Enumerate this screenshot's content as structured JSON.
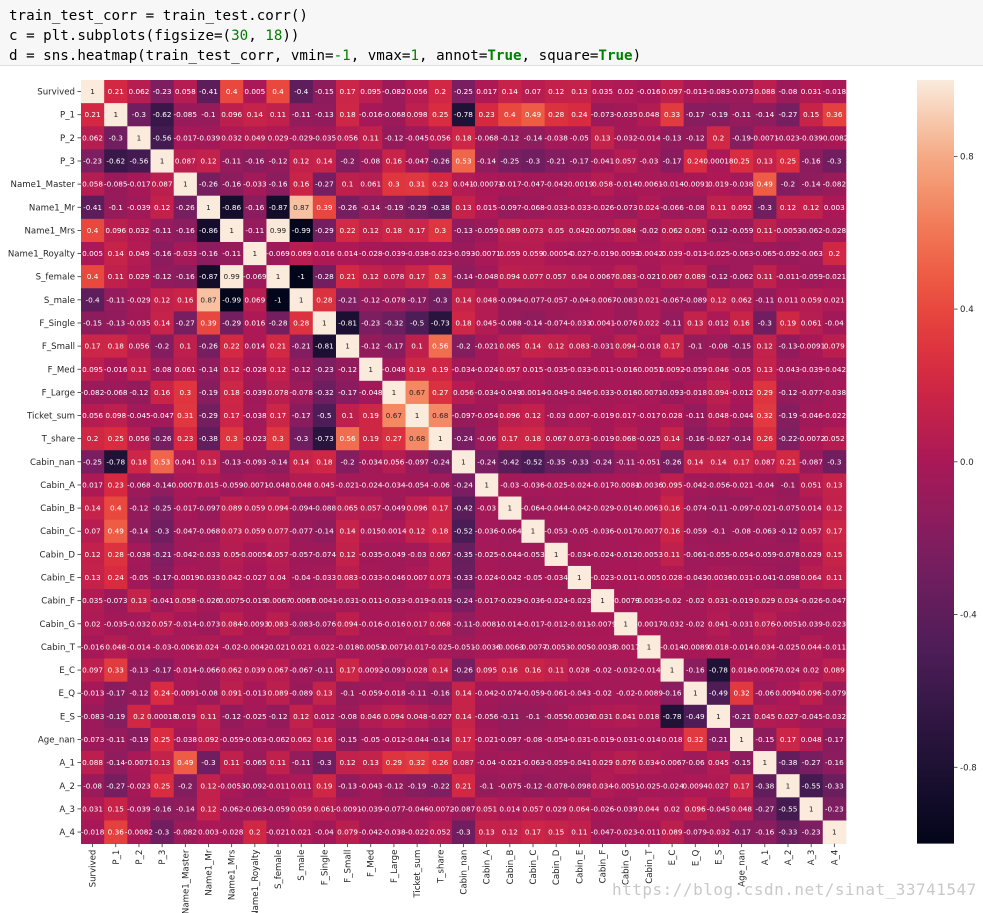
{
  "code": {
    "line1": "train_test_corr = train_test.corr()",
    "line2_pre": "c = plt.subplots(figsize=(",
    "line2_n1": "30",
    "line2_mid": ", ",
    "line2_n2": "18",
    "line2_post": "))",
    "line3_pre": "d = sns.heatmap(train_test_corr, vmin=",
    "line3_n1": "-1",
    "line3_mid1": ", vmax=",
    "line3_n2": "1",
    "line3_mid2": ", annot=",
    "line3_kw1": "True",
    "line3_mid3": ", square=",
    "line3_kw2": "True",
    "line3_post": ")"
  },
  "watermark": "https://blog.csdn.net/sinat_33741547",
  "chart_data": {
    "type": "heatmap",
    "vmin": -1,
    "vmax": 1,
    "colorbar_ticks": [
      "0.8",
      "0.4",
      "0.0",
      "-0.4",
      "-0.8"
    ],
    "colorbar_tick_values": [
      0.8,
      0.4,
      0.0,
      -0.4,
      -0.8
    ],
    "labels": [
      "Survived",
      "P_1",
      "P_2",
      "P_3",
      "Name1_Master",
      "Name1_Mr",
      "Name1_Mrs",
      "Name1_Royalty",
      "S_female",
      "S_male",
      "F_Single",
      "F_Small",
      "F_Med",
      "F_Large",
      "Ticket_sum",
      "T_share",
      "Cabin_nan",
      "Cabin_A",
      "Cabin_B",
      "Cabin_C",
      "Cabin_D",
      "Cabin_E",
      "Cabin_F",
      "Cabin_G",
      "Cabin_T",
      "E_C",
      "E_Q",
      "E_S",
      "Age_nan",
      "A_1",
      "A_2",
      "A_3",
      "A_4"
    ],
    "matrix": [
      [
        1,
        0.21,
        0.062,
        -0.23,
        0.058,
        -0.41,
        0.4,
        0.005,
        0.4,
        -0.4,
        -0.15,
        0.17,
        0.095,
        -0.082,
        0.056,
        0.2,
        -0.25,
        0.017,
        0.14,
        0.07,
        0.12,
        0.13,
        0.035,
        0.02,
        -0.016,
        0.097,
        -0.013,
        -0.083,
        -0.073,
        0.088,
        -0.08,
        0.031,
        -0.018
      ],
      [
        0.21,
        1,
        -0.3,
        -0.62,
        -0.085,
        -0.1,
        0.096,
        0.14,
        0.11,
        -0.11,
        -0.13,
        0.18,
        -0.016,
        -0.068,
        0.098,
        0.25,
        -0.78,
        0.23,
        0.4,
        0.49,
        0.28,
        0.24,
        -0.073,
        -0.035,
        0.048,
        0.33,
        -0.17,
        -0.19,
        -0.11,
        -0.14,
        -0.27,
        0.15,
        0.36
      ],
      [
        0.062,
        -0.3,
        1,
        -0.56,
        -0.017,
        -0.039,
        0.032,
        0.049,
        0.029,
        -0.029,
        -0.035,
        0.056,
        0.11,
        -0.12,
        -0.045,
        0.056,
        0.18,
        -0.068,
        -0.12,
        -0.14,
        -0.038,
        -0.05,
        0.13,
        -0.032,
        -0.014,
        -0.13,
        -0.12,
        0.2,
        -0.19,
        -0.0071,
        -0.023,
        -0.039,
        -0.0082
      ],
      [
        -0.23,
        -0.62,
        -0.56,
        1,
        0.087,
        0.12,
        -0.11,
        -0.16,
        -0.12,
        0.12,
        0.14,
        -0.2,
        -0.08,
        0.16,
        -0.047,
        -0.26,
        0.53,
        -0.14,
        -0.25,
        -0.3,
        -0.21,
        -0.17,
        -0.041,
        0.057,
        -0.03,
        -0.17,
        0.24,
        0.00018,
        0.25,
        0.13,
        0.25,
        -0.16,
        -0.3
      ],
      [
        0.058,
        -0.085,
        -0.017,
        0.087,
        1,
        -0.26,
        -0.16,
        -0.033,
        -0.16,
        0.16,
        -0.27,
        0.1,
        0.061,
        0.3,
        0.31,
        0.23,
        0.041,
        -0.00071,
        -0.017,
        -0.047,
        -0.042,
        -0.0019,
        0.058,
        -0.014,
        -0.0061,
        -0.014,
        -0.0091,
        0.019,
        -0.038,
        0.49,
        -0.2,
        -0.14,
        -0.082
      ],
      [
        -0.41,
        -0.1,
        -0.039,
        0.12,
        -0.26,
        1,
        -0.86,
        -0.16,
        -0.87,
        0.87,
        0.39,
        -0.26,
        -0.14,
        -0.19,
        -0.29,
        -0.38,
        0.13,
        0.015,
        -0.097,
        -0.068,
        -0.033,
        -0.033,
        -0.026,
        -0.073,
        0.024,
        -0.066,
        -0.08,
        0.11,
        0.092,
        -0.3,
        0.12,
        0.12,
        0.003
      ],
      [
        0.4,
        0.096,
        0.032,
        -0.11,
        -0.16,
        -0.86,
        1,
        -0.11,
        0.99,
        -0.99,
        -0.29,
        0.22,
        0.12,
        0.18,
        0.17,
        0.3,
        -0.13,
        -0.059,
        0.089,
        0.073,
        0.05,
        0.042,
        0.0075,
        0.084,
        -0.02,
        0.062,
        0.091,
        -0.12,
        -0.059,
        0.11,
        -0.0053,
        -0.062,
        -0.028
      ],
      [
        0.005,
        0.14,
        0.049,
        -0.16,
        -0.033,
        -0.16,
        -0.11,
        1,
        -0.069,
        0.069,
        0.016,
        0.014,
        -0.028,
        -0.039,
        -0.038,
        -0.023,
        -0.093,
        -0.0071,
        0.059,
        0.059,
        -0.00054,
        -0.027,
        -0.019,
        -0.0093,
        -0.0042,
        0.039,
        -0.013,
        -0.025,
        -0.063,
        -0.065,
        -0.092,
        -0.063,
        0.2
      ],
      [
        0.4,
        0.11,
        0.029,
        -0.12,
        -0.16,
        -0.87,
        0.99,
        -0.069,
        1,
        -1,
        -0.28,
        0.21,
        0.12,
        0.078,
        0.17,
        0.3,
        -0.14,
        -0.048,
        0.094,
        0.077,
        0.057,
        0.04,
        0.0067,
        0.083,
        -0.021,
        0.067,
        0.089,
        -0.12,
        -0.062,
        0.11,
        -0.011,
        -0.059,
        -0.021
      ],
      [
        -0.4,
        -0.11,
        -0.029,
        0.12,
        0.16,
        0.87,
        -0.99,
        0.069,
        -1,
        1,
        0.28,
        -0.21,
        -0.12,
        -0.078,
        -0.17,
        -0.3,
        0.14,
        0.048,
        -0.094,
        -0.077,
        -0.057,
        -0.04,
        -0.0067,
        -0.083,
        0.021,
        -0.067,
        -0.089,
        0.12,
        0.062,
        -0.11,
        0.011,
        0.059,
        0.021
      ],
      [
        -0.15,
        -0.13,
        -0.035,
        0.14,
        -0.27,
        0.39,
        -0.29,
        0.016,
        -0.28,
        0.28,
        1,
        -0.81,
        -0.23,
        -0.32,
        -0.5,
        -0.73,
        0.18,
        0.045,
        -0.088,
        -0.14,
        -0.074,
        -0.033,
        0.0041,
        -0.076,
        0.022,
        -0.11,
        0.13,
        0.012,
        0.16,
        -0.3,
        0.19,
        0.061,
        -0.04
      ],
      [
        0.17,
        0.18,
        0.056,
        -0.2,
        0.1,
        -0.26,
        0.22,
        0.014,
        0.21,
        -0.21,
        -0.81,
        1,
        -0.12,
        -0.17,
        0.1,
        0.56,
        -0.2,
        -0.021,
        0.065,
        0.14,
        0.12,
        0.083,
        -0.031,
        0.094,
        -0.018,
        0.17,
        -0.1,
        -0.08,
        -0.15,
        0.12,
        -0.13,
        -0.0091,
        0.079
      ],
      [
        0.095,
        -0.016,
        0.11,
        -0.08,
        0.061,
        -0.14,
        0.12,
        -0.028,
        0.12,
        -0.12,
        -0.23,
        -0.12,
        1,
        -0.048,
        0.19,
        0.19,
        -0.034,
        -0.024,
        0.057,
        0.015,
        -0.035,
        -0.033,
        -0.011,
        -0.016,
        -0.0051,
        0.0092,
        -0.059,
        0.046,
        -0.05,
        0.13,
        -0.043,
        -0.039,
        -0.042
      ],
      [
        -0.082,
        -0.068,
        -0.12,
        0.16,
        0.3,
        -0.19,
        0.18,
        -0.039,
        0.078,
        -0.078,
        -0.32,
        -0.17,
        -0.048,
        1,
        0.67,
        0.27,
        0.056,
        -0.034,
        -0.049,
        0.0014,
        -0.049,
        -0.046,
        -0.033,
        -0.016,
        -0.0071,
        -0.093,
        -0.018,
        0.094,
        -0.012,
        0.29,
        -0.12,
        -0.077,
        -0.038
      ],
      [
        0.056,
        0.098,
        -0.045,
        -0.047,
        0.31,
        -0.29,
        0.17,
        -0.038,
        0.17,
        -0.17,
        -0.5,
        0.1,
        0.19,
        0.67,
        1,
        0.68,
        -0.097,
        -0.054,
        0.096,
        0.12,
        -0.03,
        0.007,
        -0.019,
        0.017,
        -0.017,
        0.028,
        -0.11,
        0.048,
        -0.044,
        0.32,
        -0.19,
        -0.046,
        -0.022
      ],
      [
        0.2,
        0.25,
        0.056,
        -0.26,
        0.23,
        -0.38,
        0.3,
        -0.023,
        0.3,
        -0.3,
        -0.73,
        0.56,
        0.19,
        0.27,
        0.68,
        1,
        -0.24,
        -0.06,
        0.17,
        0.18,
        0.067,
        0.073,
        -0.019,
        0.068,
        -0.025,
        0.14,
        -0.16,
        -0.027,
        -0.14,
        0.26,
        -0.22,
        -0.0072,
        0.052
      ],
      [
        -0.25,
        -0.78,
        0.18,
        0.53,
        0.041,
        0.13,
        -0.13,
        -0.093,
        -0.14,
        0.14,
        0.18,
        -0.2,
        -0.034,
        0.056,
        -0.097,
        -0.24,
        1,
        -0.24,
        -0.42,
        -0.52,
        -0.35,
        -0.33,
        -0.24,
        -0.11,
        -0.051,
        -0.26,
        0.14,
        0.14,
        0.17,
        0.087,
        0.21,
        -0.087,
        -0.3
      ],
      [
        0.017,
        0.23,
        -0.068,
        -0.14,
        -0.00071,
        0.015,
        -0.059,
        -0.0071,
        -0.048,
        0.048,
        0.045,
        -0.021,
        -0.024,
        -0.034,
        -0.054,
        -0.06,
        -0.24,
        1,
        -0.03,
        -0.036,
        -0.025,
        -0.024,
        -0.017,
        -0.0081,
        -0.0036,
        0.095,
        -0.042,
        -0.056,
        -0.021,
        -0.04,
        -0.1,
        0.051,
        0.13
      ],
      [
        0.14,
        0.4,
        -0.12,
        -0.25,
        -0.017,
        -0.097,
        0.089,
        0.059,
        0.094,
        -0.094,
        -0.088,
        0.065,
        0.057,
        -0.049,
        0.096,
        0.17,
        -0.42,
        -0.03,
        1,
        -0.064,
        -0.044,
        -0.042,
        -0.029,
        -0.014,
        -0.0063,
        0.16,
        -0.074,
        -0.11,
        -0.097,
        -0.021,
        -0.075,
        0.014,
        0.12
      ],
      [
        0.07,
        0.49,
        -0.14,
        -0.3,
        -0.047,
        -0.068,
        0.073,
        0.059,
        0.077,
        -0.077,
        -0.14,
        0.14,
        0.015,
        0.0014,
        0.12,
        0.18,
        -0.52,
        -0.036,
        -0.064,
        1,
        -0.053,
        -0.05,
        -0.036,
        -0.017,
        -0.0077,
        0.16,
        -0.059,
        -0.1,
        -0.08,
        -0.063,
        -0.12,
        0.057,
        0.17
      ],
      [
        0.12,
        0.28,
        -0.038,
        -0.21,
        -0.042,
        -0.033,
        0.05,
        -0.00054,
        0.057,
        -0.057,
        -0.074,
        0.12,
        -0.035,
        -0.049,
        -0.03,
        0.067,
        -0.35,
        -0.025,
        -0.044,
        -0.053,
        1,
        -0.034,
        -0.024,
        -0.012,
        -0.0053,
        0.11,
        -0.061,
        -0.055,
        -0.054,
        -0.059,
        -0.078,
        0.029,
        0.15
      ],
      [
        0.13,
        0.24,
        -0.05,
        -0.17,
        -0.0019,
        -0.033,
        0.042,
        -0.027,
        0.04,
        -0.04,
        -0.033,
        0.083,
        -0.033,
        -0.046,
        0.007,
        0.073,
        -0.33,
        -0.024,
        -0.042,
        -0.05,
        -0.034,
        1,
        -0.023,
        -0.011,
        -0.005,
        0.028,
        -0.043,
        -0.0036,
        -0.031,
        -0.041,
        -0.098,
        0.064,
        0.11
      ],
      [
        0.035,
        -0.073,
        0.13,
        -0.041,
        0.058,
        -0.026,
        0.0075,
        -0.019,
        0.0067,
        -0.0067,
        0.0041,
        -0.031,
        -0.011,
        -0.033,
        -0.019,
        -0.019,
        -0.24,
        -0.017,
        -0.029,
        -0.036,
        -0.024,
        -0.023,
        1,
        -0.0079,
        -0.0035,
        -0.02,
        -0.02,
        0.031,
        -0.019,
        0.029,
        0.034,
        -0.026,
        -0.047
      ],
      [
        0.02,
        -0.035,
        -0.032,
        0.057,
        -0.014,
        -0.073,
        0.084,
        -0.0093,
        0.083,
        -0.083,
        -0.076,
        0.094,
        -0.016,
        -0.016,
        0.017,
        0.068,
        -0.11,
        -0.0081,
        -0.014,
        -0.017,
        -0.012,
        -0.011,
        -0.0079,
        1,
        -0.0017,
        -0.032,
        -0.02,
        0.041,
        -0.031,
        0.076,
        -0.0051,
        -0.039,
        -0.023
      ],
      [
        -0.016,
        0.048,
        -0.014,
        -0.03,
        -0.0061,
        0.024,
        -0.02,
        -0.0042,
        -0.021,
        0.021,
        0.022,
        -0.018,
        -0.0051,
        -0.0071,
        -0.017,
        -0.025,
        -0.051,
        -0.0036,
        -0.0063,
        -0.0077,
        -0.0053,
        -0.005,
        -0.0035,
        -0.0017,
        1,
        -0.014,
        -0.0089,
        0.018,
        -0.014,
        0.034,
        -0.025,
        0.044,
        -0.011
      ],
      [
        0.097,
        0.33,
        -0.13,
        -0.17,
        -0.014,
        -0.066,
        0.062,
        0.039,
        0.067,
        -0.067,
        -0.11,
        0.17,
        0.0092,
        -0.093,
        0.028,
        0.14,
        -0.26,
        0.095,
        0.16,
        0.16,
        0.11,
        0.028,
        -0.02,
        -0.032,
        -0.014,
        1,
        -0.16,
        -0.78,
        0.018,
        -0.0067,
        -0.024,
        0.02,
        0.089
      ],
      [
        -0.013,
        -0.17,
        -0.12,
        0.24,
        -0.0091,
        -0.08,
        0.091,
        -0.013,
        0.089,
        -0.089,
        0.13,
        -0.1,
        -0.059,
        -0.018,
        -0.11,
        -0.16,
        0.14,
        -0.042,
        -0.074,
        -0.059,
        -0.061,
        -0.043,
        -0.02,
        -0.02,
        -0.0089,
        -0.16,
        1,
        -0.49,
        0.32,
        -0.06,
        0.0094,
        0.096,
        -0.079
      ],
      [
        -0.083,
        -0.19,
        0.2,
        0.00018,
        0.019,
        0.11,
        -0.12,
        -0.025,
        -0.12,
        0.12,
        0.012,
        -0.08,
        0.046,
        0.094,
        0.048,
        -0.027,
        0.14,
        -0.056,
        -0.11,
        -0.1,
        -0.055,
        -0.0036,
        0.031,
        0.041,
        0.018,
        -0.78,
        -0.49,
        1,
        -0.21,
        0.045,
        0.027,
        -0.045,
        -0.032
      ],
      [
        -0.073,
        -0.11,
        -0.19,
        0.25,
        -0.038,
        0.092,
        -0.059,
        -0.063,
        -0.062,
        0.062,
        0.16,
        -0.15,
        -0.05,
        -0.012,
        -0.044,
        -0.14,
        0.17,
        -0.021,
        -0.097,
        -0.08,
        -0.054,
        -0.031,
        -0.019,
        -0.031,
        -0.014,
        0.018,
        0.32,
        -0.21,
        1,
        -0.15,
        0.17,
        0.048,
        -0.17
      ],
      [
        0.088,
        -0.14,
        -0.0071,
        0.13,
        0.49,
        -0.3,
        0.11,
        -0.065,
        0.11,
        -0.11,
        -0.3,
        0.12,
        0.13,
        0.29,
        0.32,
        0.26,
        0.087,
        -0.04,
        -0.021,
        -0.063,
        -0.059,
        -0.041,
        0.029,
        0.076,
        0.034,
        -0.0067,
        -0.06,
        0.045,
        -0.15,
        1,
        -0.38,
        -0.27,
        -0.16
      ],
      [
        -0.08,
        -0.27,
        -0.023,
        0.25,
        -0.2,
        0.12,
        -0.0053,
        -0.092,
        -0.011,
        0.011,
        0.19,
        -0.13,
        -0.043,
        -0.12,
        -0.19,
        -0.22,
        0.21,
        -0.1,
        -0.075,
        -0.12,
        -0.078,
        -0.098,
        0.034,
        -0.0051,
        -0.025,
        -0.024,
        0.0094,
        0.027,
        0.17,
        -0.38,
        1,
        -0.55,
        -0.33
      ],
      [
        0.031,
        0.15,
        -0.039,
        -0.16,
        -0.14,
        0.12,
        -0.062,
        -0.063,
        -0.059,
        0.059,
        0.061,
        -0.0091,
        -0.039,
        -0.077,
        -0.046,
        -0.0072,
        -0.087,
        0.051,
        0.014,
        0.057,
        0.029,
        0.064,
        -0.026,
        -0.039,
        0.044,
        0.02,
        0.096,
        -0.045,
        0.048,
        -0.27,
        -0.55,
        1,
        -0.23
      ],
      [
        -0.018,
        0.36,
        -0.0082,
        -0.3,
        -0.082,
        0.003,
        -0.028,
        0.2,
        -0.021,
        0.021,
        -0.04,
        0.079,
        -0.042,
        -0.038,
        -0.022,
        0.052,
        -0.3,
        0.13,
        0.12,
        0.17,
        0.15,
        0.11,
        -0.047,
        -0.023,
        -0.011,
        0.089,
        -0.079,
        -0.032,
        -0.17,
        -0.16,
        -0.33,
        -0.23,
        1
      ]
    ]
  }
}
